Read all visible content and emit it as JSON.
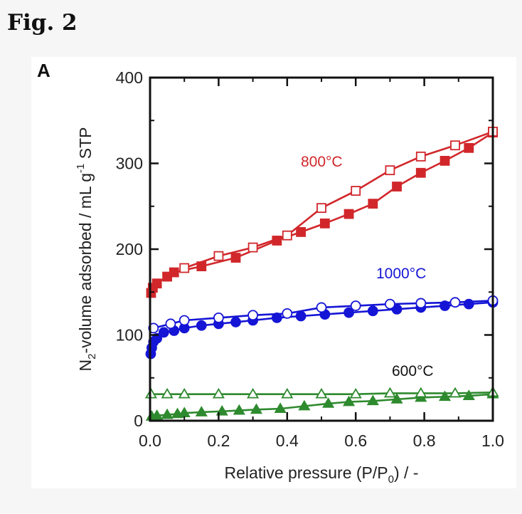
{
  "figure_title": "Fig. 2",
  "colors": {
    "800": "#d1272b",
    "1000": "#1515d6",
    "600": "#2e8a2e"
  },
  "chart_data": {
    "type": "scatter",
    "panel_label": "A",
    "xlabel_pre": "Relative pressure (P/P",
    "xlabel_sub": "0",
    "xlabel_post": ") / -",
    "ylabel_pre": "N",
    "ylabel_sub": "2",
    "ylabel_mid": "-volume adsorbed / mL g",
    "ylabel_sup": "-1",
    "ylabel_post": " STP",
    "xlim": [
      0,
      1.0
    ],
    "ylim": [
      0,
      400
    ],
    "xticks": [
      "0.0",
      "0.2",
      "0.4",
      "0.6",
      "0.8",
      "1.0"
    ],
    "yticks": [
      "0",
      "100",
      "200",
      "300",
      "400"
    ],
    "annotations": [
      "800°C",
      "1000°C",
      "600°C"
    ],
    "series": [
      {
        "temp": "800",
        "branch": "adsorption",
        "marker": "square-filled",
        "x": [
          0.003,
          0.008,
          0.02,
          0.05,
          0.07,
          0.15,
          0.25,
          0.37,
          0.44,
          0.51,
          0.58,
          0.65,
          0.72,
          0.79,
          0.86,
          0.93,
          1.0
        ],
        "y": [
          149,
          155,
          160,
          168,
          173,
          180,
          190,
          210,
          220,
          230,
          241,
          253,
          273,
          289,
          303,
          318,
          336
        ]
      },
      {
        "temp": "800",
        "branch": "desorption",
        "marker": "square-open",
        "x": [
          1.0,
          0.89,
          0.79,
          0.7,
          0.6,
          0.5,
          0.4,
          0.3,
          0.2,
          0.1
        ],
        "y": [
          337,
          321,
          308,
          292,
          268,
          248,
          216,
          202,
          192,
          178
        ]
      },
      {
        "temp": "1000",
        "branch": "adsorption",
        "marker": "circle-filled",
        "x": [
          0.002,
          0.005,
          0.01,
          0.02,
          0.04,
          0.07,
          0.1,
          0.15,
          0.2,
          0.25,
          0.3,
          0.37,
          0.44,
          0.51,
          0.58,
          0.65,
          0.72,
          0.79,
          0.86,
          0.93,
          1.0
        ],
        "y": [
          78,
          85,
          92,
          96,
          103,
          105,
          108,
          111,
          113,
          115,
          117,
          120,
          122,
          124,
          126,
          128,
          130,
          132,
          134,
          136,
          138
        ]
      },
      {
        "temp": "1000",
        "branch": "desorption",
        "marker": "circle-open",
        "x": [
          1.0,
          0.89,
          0.79,
          0.7,
          0.6,
          0.5,
          0.4,
          0.3,
          0.2,
          0.1,
          0.06,
          0.01
        ],
        "y": [
          140,
          138,
          137,
          136,
          134,
          132,
          125,
          123,
          120,
          117,
          113,
          108
        ]
      },
      {
        "temp": "600",
        "branch": "adsorption",
        "marker": "triangle-filled",
        "x": [
          0.005,
          0.02,
          0.05,
          0.08,
          0.1,
          0.15,
          0.21,
          0.26,
          0.31,
          0.38,
          0.45,
          0.52,
          0.58,
          0.65,
          0.72,
          0.79,
          0.86,
          0.93,
          1.0
        ],
        "y": [
          5,
          6,
          7,
          8,
          9,
          10,
          11,
          12,
          13,
          14,
          17,
          20,
          22,
          23,
          25,
          27,
          28,
          29,
          31
        ]
      },
      {
        "temp": "600",
        "branch": "desorption",
        "marker": "triangle-open",
        "x": [
          1.0,
          0.89,
          0.79,
          0.7,
          0.6,
          0.5,
          0.4,
          0.3,
          0.2,
          0.1,
          0.05,
          0.003
        ],
        "y": [
          33,
          32,
          32,
          32,
          31,
          31,
          31,
          31,
          31,
          31,
          31,
          31
        ]
      }
    ]
  }
}
